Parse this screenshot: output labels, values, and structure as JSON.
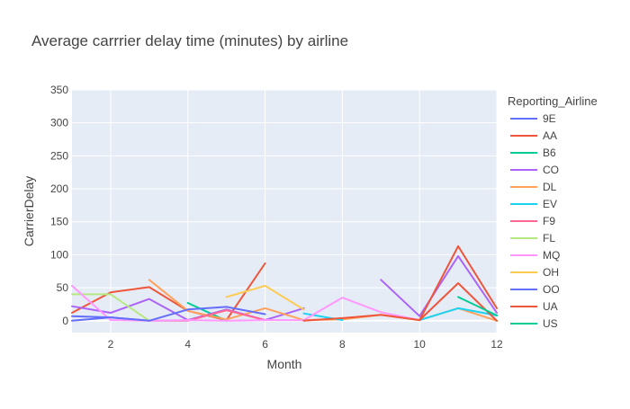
{
  "chart_data": {
    "type": "line",
    "title": "Average carrrier delay time (minutes) by airline",
    "xlabel": "Month",
    "ylabel": "CarrierDelay",
    "xlim": [
      1,
      12
    ],
    "ylim": [
      -18,
      350
    ],
    "xticks": [
      2,
      4,
      6,
      8,
      10,
      12
    ],
    "yticks": [
      0,
      50,
      100,
      150,
      200,
      250,
      300,
      350
    ],
    "grid": true,
    "legend_title": "Reporting_Airline",
    "legend_position": "right",
    "series": [
      {
        "name": "9E",
        "color": "#636efa",
        "points": [
          [
            1,
            0
          ],
          [
            2,
            5
          ],
          [
            3,
            0
          ]
        ]
      },
      {
        "name": "AA",
        "color": "#EF553B",
        "points": [
          [
            1,
            12
          ],
          [
            2,
            43
          ],
          [
            3,
            51
          ],
          [
            4,
            15
          ],
          [
            5,
            1
          ],
          [
            6,
            87
          ]
        ]
      },
      {
        "name": "B6",
        "color": "#00cc96",
        "points": [
          [
            4,
            27
          ],
          [
            5,
            0
          ]
        ]
      },
      {
        "name": "CO",
        "color": "#ab63fa",
        "points": [
          [
            1,
            22
          ],
          [
            2,
            12
          ],
          [
            3,
            33
          ],
          [
            4,
            1
          ],
          [
            5,
            17
          ],
          [
            6,
            1
          ],
          [
            7,
            19
          ],
          [
            null,
            null
          ],
          [
            9,
            62
          ],
          [
            10,
            7
          ],
          [
            11,
            98
          ],
          [
            12,
            12
          ]
        ]
      },
      {
        "name": "DL",
        "color": "#FFA15A",
        "points": [
          [
            3,
            62
          ],
          [
            4,
            15
          ],
          [
            5,
            2
          ],
          [
            6,
            19
          ],
          [
            7,
            1
          ],
          [
            8,
            2
          ],
          [
            9,
            9
          ],
          [
            10,
            1
          ],
          [
            11,
            19
          ],
          [
            12,
            0
          ]
        ]
      },
      {
        "name": "EV",
        "color": "#19d3f3",
        "points": [
          [
            7,
            11
          ],
          [
            8,
            1
          ],
          [
            null,
            null
          ],
          [
            10,
            1
          ],
          [
            11,
            19
          ],
          [
            12,
            8
          ]
        ]
      },
      {
        "name": "F9",
        "color": "#FF6692",
        "points": [
          [
            3,
            0
          ],
          [
            4,
            0
          ],
          [
            5,
            16
          ],
          [
            6,
            1
          ]
        ]
      },
      {
        "name": "FL",
        "color": "#B6E880",
        "points": [
          [
            1,
            40
          ],
          [
            2,
            40
          ],
          [
            3,
            0
          ]
        ]
      },
      {
        "name": "MQ",
        "color": "#FF97FF",
        "points": [
          [
            1,
            53
          ],
          [
            2,
            1
          ],
          [
            3,
            0
          ],
          [
            4,
            1
          ],
          [
            5,
            0
          ],
          [
            6,
            1
          ],
          [
            7,
            1
          ],
          [
            8,
            35
          ],
          [
            9,
            13
          ],
          [
            10,
            1
          ]
        ]
      },
      {
        "name": "OH",
        "color": "#FECB52",
        "points": [
          [
            5,
            36
          ],
          [
            6,
            53
          ],
          [
            7,
            17
          ]
        ]
      },
      {
        "name": "OO",
        "color": "#636efa",
        "points": [
          [
            1,
            7
          ],
          [
            2,
            5
          ],
          [
            3,
            0
          ],
          [
            4,
            17
          ],
          [
            5,
            21
          ],
          [
            6,
            10
          ]
        ]
      },
      {
        "name": "UA",
        "color": "#EF553B",
        "points": [
          [
            7,
            0
          ],
          [
            8,
            4
          ],
          [
            9,
            9
          ],
          [
            10,
            1
          ],
          [
            11,
            57
          ],
          [
            12,
            0
          ]
        ]
      },
      {
        "name": "US",
        "color": "#00cc96",
        "points": [
          [
            11,
            36
          ],
          [
            12,
            8
          ]
        ]
      },
      {
        "name": "",
        "color": "#ab63fa",
        "points": []
      },
      {
        "name": "",
        "color": "#FFA15A",
        "points": []
      }
    ],
    "extra_red_line": {
      "color": "#EF553B",
      "points": [
        [
          10,
          1
        ],
        [
          11,
          113
        ],
        [
          12,
          19
        ]
      ]
    }
  }
}
